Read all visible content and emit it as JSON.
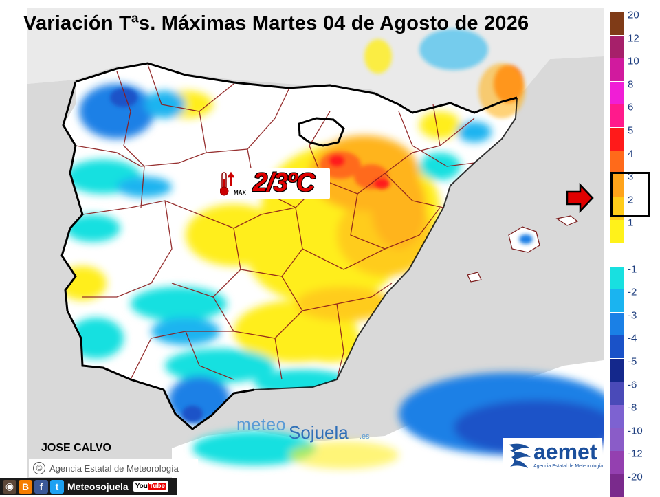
{
  "title": "Variación Tªs. Máximas Martes 04 de Agosto de 2026",
  "callout": {
    "value": "2/3ºC",
    "max_label": "MAX",
    "icon": "thermometer-up-icon"
  },
  "author": "JOSE CALVO",
  "agency_credit": "Agencia Estatal de Meteorología",
  "branding": {
    "meteo": "meteo",
    "sojuela": "Sojuela",
    "tld": ".es"
  },
  "aemet": {
    "word": "aemet",
    "subtitle": "Agencia Estatal de Meteorología"
  },
  "social": {
    "handle": "Meteosojuela",
    "youtube": "You",
    "youtube_tube": "Tube",
    "icons": [
      "instagram-icon",
      "blogger-icon",
      "facebook-icon",
      "twitter-icon"
    ]
  },
  "legend": {
    "selected_range": [
      "2",
      "3"
    ],
    "entries": [
      {
        "label": "20",
        "color": "#7f3b17"
      },
      {
        "label": "12",
        "color": "#a6206a"
      },
      {
        "label": "10",
        "color": "#d11a9e"
      },
      {
        "label": "8",
        "color": "#f01ed6"
      },
      {
        "label": "6",
        "color": "#ff1a8c"
      },
      {
        "label": "5",
        "color": "#ff1a1a"
      },
      {
        "label": "4",
        "color": "#ff6a1a"
      },
      {
        "label": "3",
        "color": "#ffa31a"
      },
      {
        "label": "2",
        "color": "#ffcc1a"
      },
      {
        "label": "1",
        "color": "#fff21a"
      },
      {
        "label": "",
        "color": "#ffffff"
      },
      {
        "label": "-1",
        "color": "#18e0e0"
      },
      {
        "label": "-2",
        "color": "#1ab4f0"
      },
      {
        "label": "-3",
        "color": "#1a80e6"
      },
      {
        "label": "-4",
        "color": "#1a52c8"
      },
      {
        "label": "-5",
        "color": "#14288c"
      },
      {
        "label": "-6",
        "color": "#4a4ab8"
      },
      {
        "label": "-8",
        "color": "#7d62d1"
      },
      {
        "label": "-10",
        "color": "#8a5cc8"
      },
      {
        "label": "-12",
        "color": "#9440b0"
      },
      {
        "label": "-20",
        "color": "#7a2a8c"
      }
    ]
  }
}
